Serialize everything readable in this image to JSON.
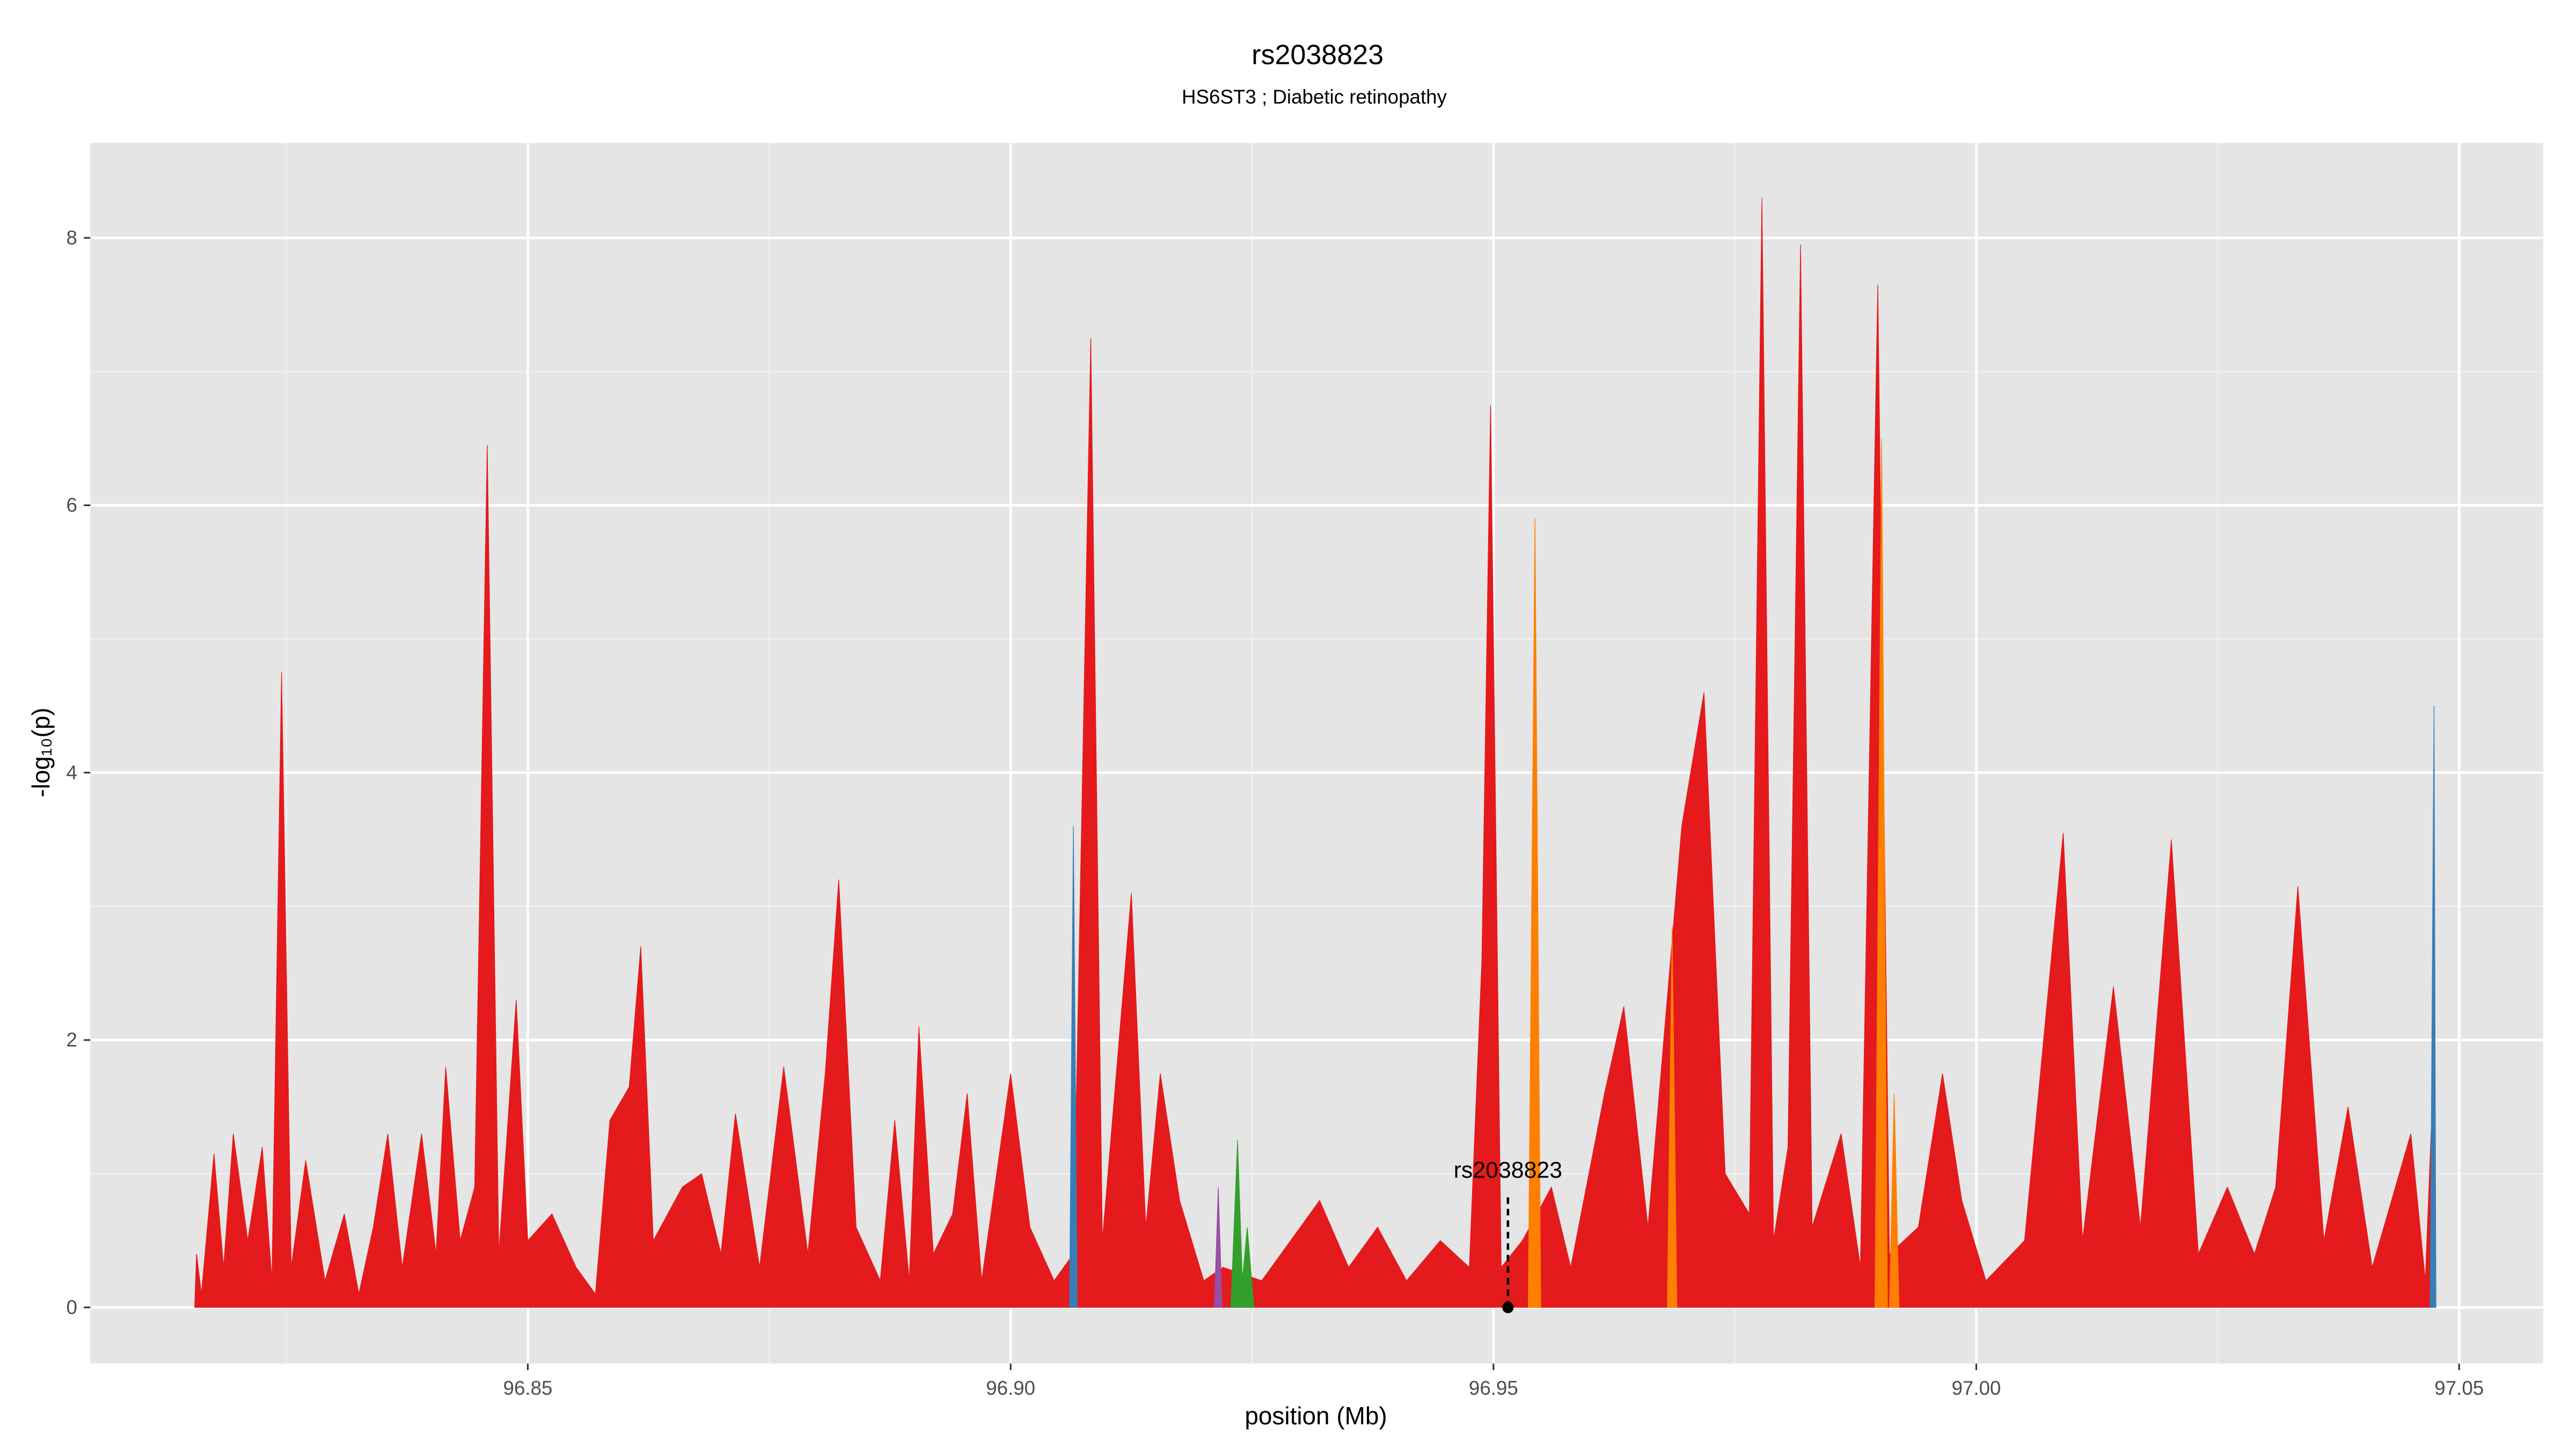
{
  "chart_data": {
    "type": "area",
    "title": "rs2038823",
    "subtitle": "HS6ST3 ; Diabetic retinopathy",
    "x_label": "position (Mb)",
    "y_label": "-log₁₀(p)",
    "xlim": [
      96.8047,
      97.0587
    ],
    "ylim": [
      -0.42,
      8.71
    ],
    "xticks": [
      96.85,
      {
        "value": 96.9,
        "label": "96.90"
      },
      96.95,
      {
        "value": 97,
        "label": "97.00"
      },
      97.05
    ],
    "yticks": [
      0,
      2,
      4,
      6,
      8
    ],
    "grid": true,
    "minor_grid": true,
    "series": [
      {
        "color": "#e41a1c",
        "x": [
          96.8155,
          96.8157,
          96.8162,
          96.8175,
          96.8185,
          96.8195,
          96.821,
          96.8225,
          96.8235,
          96.8245,
          96.8255,
          96.827,
          96.829,
          96.831,
          96.8325,
          96.834,
          96.8355,
          96.837,
          96.839,
          96.8405,
          96.8415,
          96.843,
          96.8445,
          96.8458,
          96.847,
          96.8488,
          96.85,
          96.8525,
          96.855,
          96.857,
          96.8585,
          96.8605,
          96.8617,
          96.863,
          96.866,
          96.868,
          96.87,
          96.8715,
          96.874,
          96.8765,
          96.879,
          96.8808,
          96.8822,
          96.884,
          96.8865,
          96.888,
          96.8895,
          96.8905,
          96.892,
          96.894,
          96.8955,
          96.897,
          96.9,
          96.902,
          96.9045,
          96.9065,
          96.9083,
          96.9095,
          96.9125,
          96.914,
          96.9155,
          96.9175,
          96.92,
          96.922,
          96.926,
          96.929,
          96.932,
          96.935,
          96.938,
          96.941,
          96.9445,
          96.9475,
          96.9488,
          96.9497,
          96.9508,
          96.953,
          96.956,
          96.958,
          96.9615,
          96.9635,
          96.966,
          96.9695,
          96.9718,
          96.974,
          96.9765,
          96.9778,
          96.979,
          96.9805,
          96.9818,
          96.983,
          96.986,
          96.988,
          96.9898,
          96.991,
          96.994,
          96.9965,
          96.9985,
          97.001,
          97.005,
          97.009,
          97.011,
          97.0142,
          97.017,
          97.0202,
          97.023,
          97.026,
          97.0288,
          97.031,
          97.0333,
          97.036,
          97.0385,
          97.041,
          97.043,
          97.045,
          97.0465,
          97.0472,
          97.0475
        ],
        "values": [
          0,
          0.4,
          0.1,
          1.15,
          0.3,
          1.3,
          0.5,
          1.2,
          0.2,
          4.75,
          0.3,
          1.1,
          0.2,
          0.7,
          0.1,
          0.6,
          1.3,
          0.3,
          1.3,
          0.4,
          1.8,
          0.5,
          0.9,
          6.45,
          0.4,
          2.3,
          0.5,
          0.7,
          0.3,
          0.1,
          1.4,
          1.65,
          2.7,
          0.5,
          0.9,
          1.0,
          0.4,
          1.45,
          0.3,
          1.8,
          0.4,
          1.75,
          3.2,
          0.6,
          0.2,
          1.4,
          0.2,
          2.1,
          0.4,
          0.7,
          1.6,
          0.2,
          1.75,
          0.6,
          0.2,
          0.4,
          7.25,
          0.5,
          3.1,
          0.6,
          1.75,
          0.8,
          0.2,
          0.3,
          0.2,
          0.5,
          0.8,
          0.3,
          0.6,
          0.2,
          0.5,
          0.3,
          2.6,
          6.75,
          0.3,
          0.5,
          0.9,
          0.3,
          1.6,
          2.25,
          0.6,
          3.6,
          4.6,
          1.0,
          0.7,
          8.3,
          0.5,
          1.2,
          7.95,
          0.6,
          1.3,
          0.3,
          7.65,
          0.4,
          0.6,
          1.75,
          0.8,
          0.2,
          0.5,
          3.55,
          0.5,
          2.4,
          0.6,
          3.5,
          0.4,
          0.9,
          0.4,
          0.9,
          3.15,
          0.5,
          1.5,
          0.3,
          0.8,
          1.3,
          0.2,
          1.5,
          0
        ]
      },
      {
        "color": "#ff7f00",
        "x": [
          96.9536,
          96.9543,
          96.9549,
          null,
          96.968,
          96.9685,
          96.969,
          null,
          96.9895,
          96.9902,
          96.9908,
          null,
          96.991,
          96.9915,
          96.992
        ],
        "values": [
          0,
          5.9,
          0,
          null,
          0,
          2.85,
          0,
          null,
          0,
          6.5,
          0,
          null,
          0,
          1.6,
          0
        ]
      },
      {
        "color": "#377eb8",
        "x": [
          96.9061,
          96.9065,
          96.9069,
          null,
          97.047,
          97.0474,
          97.0476
        ],
        "values": [
          0,
          3.6,
          0,
          null,
          0,
          4.5,
          0
        ]
      },
      {
        "color": "#984ea3",
        "x": [
          96.9211,
          96.9215,
          96.9219
        ],
        "values": [
          0,
          0.9,
          0
        ]
      },
      {
        "color": "#33a02c",
        "x": [
          96.9228,
          96.9235,
          96.924,
          96.9245,
          96.9252
        ],
        "values": [
          0,
          1.25,
          0.2,
          0.6,
          0
        ]
      }
    ],
    "annotation": {
      "label": "rs2038823",
      "x": 96.9515
    }
  }
}
